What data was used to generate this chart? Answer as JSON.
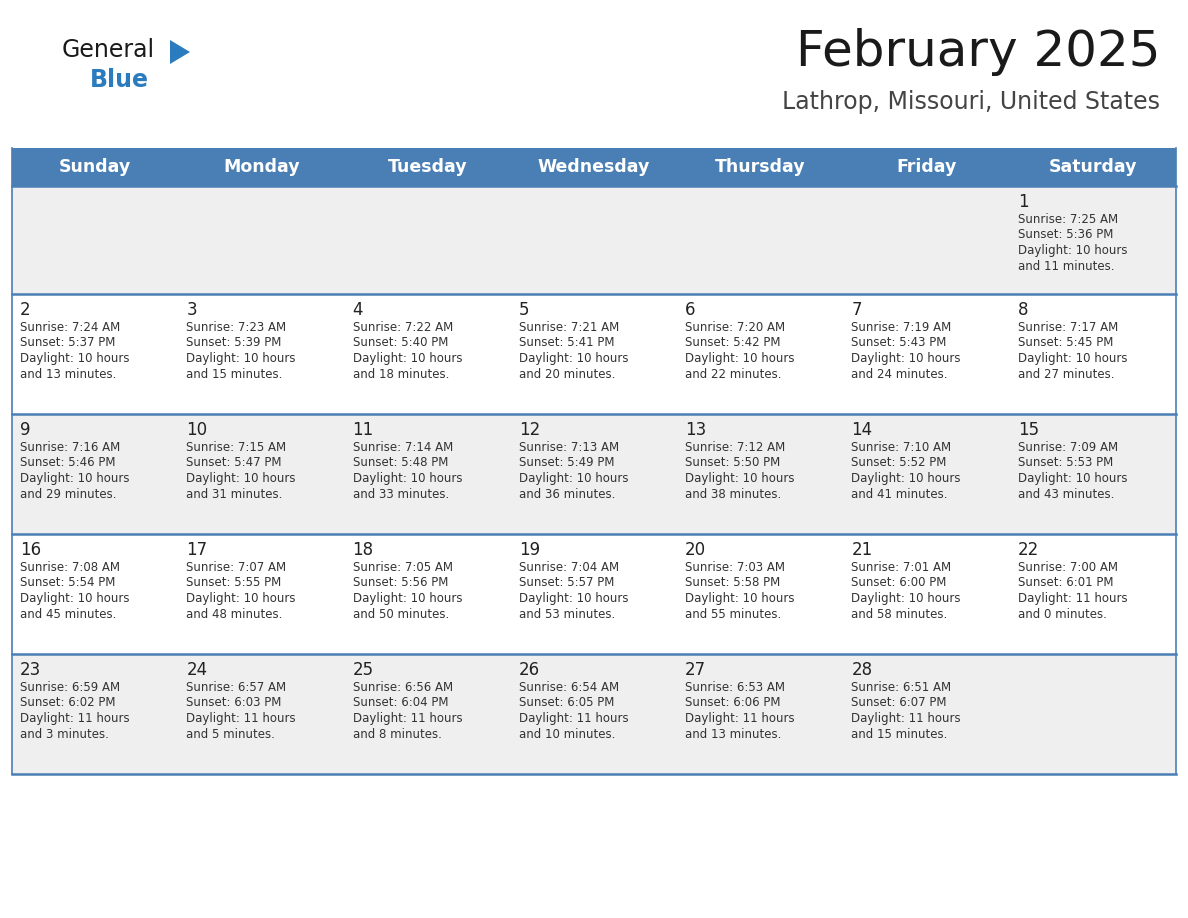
{
  "title": "February 2025",
  "subtitle": "Lathrop, Missouri, United States",
  "header_bg": "#4a7fb5",
  "header_text_color": "#ffffff",
  "day_names": [
    "Sunday",
    "Monday",
    "Tuesday",
    "Wednesday",
    "Thursday",
    "Friday",
    "Saturday"
  ],
  "row_bg_odd": "#efefef",
  "row_bg_even": "#ffffff",
  "divider_color": "#4a7fb5",
  "cell_text_color": "#333333",
  "day_num_color": "#222222",
  "calendar": [
    [
      {
        "day": "",
        "sunrise": "",
        "sunset": "",
        "daylight": ""
      },
      {
        "day": "",
        "sunrise": "",
        "sunset": "",
        "daylight": ""
      },
      {
        "day": "",
        "sunrise": "",
        "sunset": "",
        "daylight": ""
      },
      {
        "day": "",
        "sunrise": "",
        "sunset": "",
        "daylight": ""
      },
      {
        "day": "",
        "sunrise": "",
        "sunset": "",
        "daylight": ""
      },
      {
        "day": "",
        "sunrise": "",
        "sunset": "",
        "daylight": ""
      },
      {
        "day": "1",
        "sunrise": "Sunrise: 7:25 AM",
        "sunset": "Sunset: 5:36 PM",
        "daylight": "Daylight: 10 hours\nand 11 minutes."
      }
    ],
    [
      {
        "day": "2",
        "sunrise": "Sunrise: 7:24 AM",
        "sunset": "Sunset: 5:37 PM",
        "daylight": "Daylight: 10 hours\nand 13 minutes."
      },
      {
        "day": "3",
        "sunrise": "Sunrise: 7:23 AM",
        "sunset": "Sunset: 5:39 PM",
        "daylight": "Daylight: 10 hours\nand 15 minutes."
      },
      {
        "day": "4",
        "sunrise": "Sunrise: 7:22 AM",
        "sunset": "Sunset: 5:40 PM",
        "daylight": "Daylight: 10 hours\nand 18 minutes."
      },
      {
        "day": "5",
        "sunrise": "Sunrise: 7:21 AM",
        "sunset": "Sunset: 5:41 PM",
        "daylight": "Daylight: 10 hours\nand 20 minutes."
      },
      {
        "day": "6",
        "sunrise": "Sunrise: 7:20 AM",
        "sunset": "Sunset: 5:42 PM",
        "daylight": "Daylight: 10 hours\nand 22 minutes."
      },
      {
        "day": "7",
        "sunrise": "Sunrise: 7:19 AM",
        "sunset": "Sunset: 5:43 PM",
        "daylight": "Daylight: 10 hours\nand 24 minutes."
      },
      {
        "day": "8",
        "sunrise": "Sunrise: 7:17 AM",
        "sunset": "Sunset: 5:45 PM",
        "daylight": "Daylight: 10 hours\nand 27 minutes."
      }
    ],
    [
      {
        "day": "9",
        "sunrise": "Sunrise: 7:16 AM",
        "sunset": "Sunset: 5:46 PM",
        "daylight": "Daylight: 10 hours\nand 29 minutes."
      },
      {
        "day": "10",
        "sunrise": "Sunrise: 7:15 AM",
        "sunset": "Sunset: 5:47 PM",
        "daylight": "Daylight: 10 hours\nand 31 minutes."
      },
      {
        "day": "11",
        "sunrise": "Sunrise: 7:14 AM",
        "sunset": "Sunset: 5:48 PM",
        "daylight": "Daylight: 10 hours\nand 33 minutes."
      },
      {
        "day": "12",
        "sunrise": "Sunrise: 7:13 AM",
        "sunset": "Sunset: 5:49 PM",
        "daylight": "Daylight: 10 hours\nand 36 minutes."
      },
      {
        "day": "13",
        "sunrise": "Sunrise: 7:12 AM",
        "sunset": "Sunset: 5:50 PM",
        "daylight": "Daylight: 10 hours\nand 38 minutes."
      },
      {
        "day": "14",
        "sunrise": "Sunrise: 7:10 AM",
        "sunset": "Sunset: 5:52 PM",
        "daylight": "Daylight: 10 hours\nand 41 minutes."
      },
      {
        "day": "15",
        "sunrise": "Sunrise: 7:09 AM",
        "sunset": "Sunset: 5:53 PM",
        "daylight": "Daylight: 10 hours\nand 43 minutes."
      }
    ],
    [
      {
        "day": "16",
        "sunrise": "Sunrise: 7:08 AM",
        "sunset": "Sunset: 5:54 PM",
        "daylight": "Daylight: 10 hours\nand 45 minutes."
      },
      {
        "day": "17",
        "sunrise": "Sunrise: 7:07 AM",
        "sunset": "Sunset: 5:55 PM",
        "daylight": "Daylight: 10 hours\nand 48 minutes."
      },
      {
        "day": "18",
        "sunrise": "Sunrise: 7:05 AM",
        "sunset": "Sunset: 5:56 PM",
        "daylight": "Daylight: 10 hours\nand 50 minutes."
      },
      {
        "day": "19",
        "sunrise": "Sunrise: 7:04 AM",
        "sunset": "Sunset: 5:57 PM",
        "daylight": "Daylight: 10 hours\nand 53 minutes."
      },
      {
        "day": "20",
        "sunrise": "Sunrise: 7:03 AM",
        "sunset": "Sunset: 5:58 PM",
        "daylight": "Daylight: 10 hours\nand 55 minutes."
      },
      {
        "day": "21",
        "sunrise": "Sunrise: 7:01 AM",
        "sunset": "Sunset: 6:00 PM",
        "daylight": "Daylight: 10 hours\nand 58 minutes."
      },
      {
        "day": "22",
        "sunrise": "Sunrise: 7:00 AM",
        "sunset": "Sunset: 6:01 PM",
        "daylight": "Daylight: 11 hours\nand 0 minutes."
      }
    ],
    [
      {
        "day": "23",
        "sunrise": "Sunrise: 6:59 AM",
        "sunset": "Sunset: 6:02 PM",
        "daylight": "Daylight: 11 hours\nand 3 minutes."
      },
      {
        "day": "24",
        "sunrise": "Sunrise: 6:57 AM",
        "sunset": "Sunset: 6:03 PM",
        "daylight": "Daylight: 11 hours\nand 5 minutes."
      },
      {
        "day": "25",
        "sunrise": "Sunrise: 6:56 AM",
        "sunset": "Sunset: 6:04 PM",
        "daylight": "Daylight: 11 hours\nand 8 minutes."
      },
      {
        "day": "26",
        "sunrise": "Sunrise: 6:54 AM",
        "sunset": "Sunset: 6:05 PM",
        "daylight": "Daylight: 11 hours\nand 10 minutes."
      },
      {
        "day": "27",
        "sunrise": "Sunrise: 6:53 AM",
        "sunset": "Sunset: 6:06 PM",
        "daylight": "Daylight: 11 hours\nand 13 minutes."
      },
      {
        "day": "28",
        "sunrise": "Sunrise: 6:51 AM",
        "sunset": "Sunset: 6:07 PM",
        "daylight": "Daylight: 11 hours\nand 15 minutes."
      },
      {
        "day": "",
        "sunrise": "",
        "sunset": "",
        "daylight": ""
      }
    ]
  ],
  "logo_color_general": "#1a1a1a",
  "logo_color_blue": "#2b7bbf",
  "logo_triangle_color": "#2b7bbf"
}
